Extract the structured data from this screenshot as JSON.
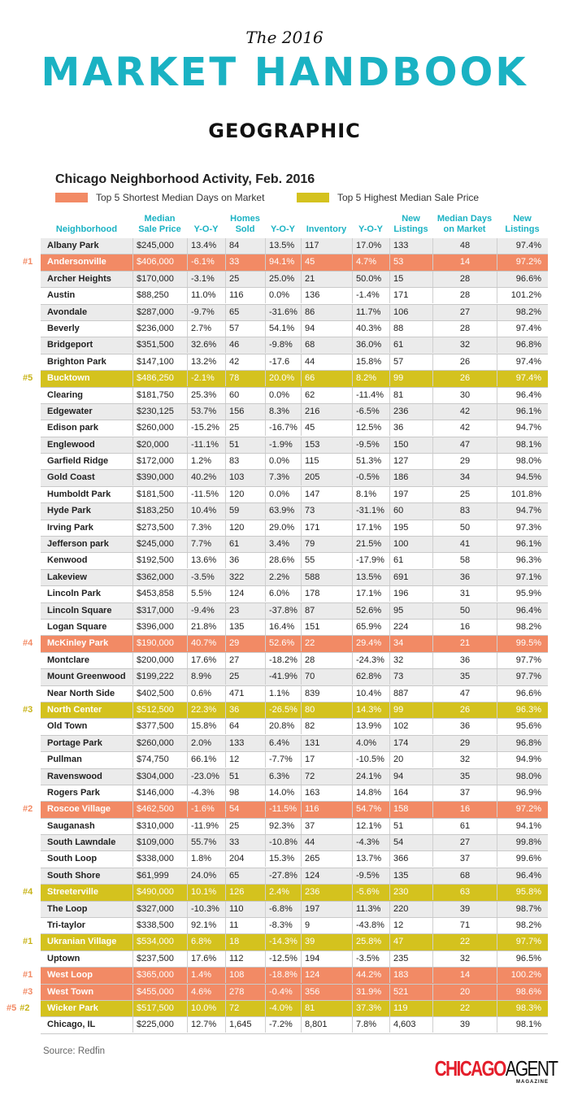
{
  "header": {
    "kicker": "The 2016",
    "title": "MARKET HANDBOOK",
    "section": "GEOGRAPHIC"
  },
  "table": {
    "title": "Chicago Neighborhood Activity, Feb. 2016",
    "legend": [
      {
        "label": "Top 5 Shortest Median Days on Market",
        "color": "#f28a65"
      },
      {
        "label": "Top 5 Highest Median Sale Price",
        "color": "#d4c21e"
      }
    ],
    "rank_colors": {
      "days": "#f28a65",
      "price": "#c8b41a"
    },
    "columns": [
      "Neighborhood",
      "Median\nSale Price",
      "Y-O-Y",
      "Homes\nSold",
      "Y-O-Y",
      "Inventory",
      "Y-O-Y",
      "New\nListings",
      "Median Days\non Market",
      "New\nListings"
    ],
    "rows": [
      {
        "cells": [
          "Albany Park",
          "$245,000",
          "13.4%",
          "84",
          "13.5%",
          "117",
          "17.0%",
          "133",
          "48",
          "97.4%"
        ]
      },
      {
        "cells": [
          "Andersonville",
          "$406,000",
          "-6.1%",
          "33",
          "94.1%",
          "45",
          "4.7%",
          "53",
          "14",
          "97.2%"
        ],
        "highlight": "days",
        "ranks": [
          {
            "text": "#1",
            "type": "days"
          }
        ]
      },
      {
        "cells": [
          "Archer Heights",
          "$170,000",
          "-3.1%",
          "25",
          "25.0%",
          "21",
          "50.0%",
          "15",
          "28",
          "96.6%"
        ]
      },
      {
        "cells": [
          "Austin",
          "$88,250",
          "11.0%",
          "116",
          "0.0%",
          "136",
          "-1.4%",
          "171",
          "28",
          "101.2%"
        ]
      },
      {
        "cells": [
          "Avondale",
          "$287,000",
          "-9.7%",
          "65",
          "-31.6%",
          "86",
          "11.7%",
          "106",
          "27",
          "98.2%"
        ]
      },
      {
        "cells": [
          "Beverly",
          "$236,000",
          "2.7%",
          "57",
          "54.1%",
          "94",
          "40.3%",
          "88",
          "28",
          "97.4%"
        ]
      },
      {
        "cells": [
          "Bridgeport",
          "$351,500",
          "32.6%",
          "46",
          "-9.8%",
          "68",
          "36.0%",
          "61",
          "32",
          "96.8%"
        ]
      },
      {
        "cells": [
          "Brighton Park",
          "$147,100",
          "13.2%",
          "42",
          "-17.6",
          "44",
          "15.8%",
          "57",
          "26",
          "97.4%"
        ]
      },
      {
        "cells": [
          "Bucktown",
          "$486,250",
          "-2.1%",
          "78",
          "20.0%",
          "66",
          "8.2%",
          "99",
          "26",
          "97.4%"
        ],
        "highlight": "price",
        "ranks": [
          {
            "text": "#5",
            "type": "price"
          }
        ]
      },
      {
        "cells": [
          "Clearing",
          "$181,750",
          "25.3%",
          "60",
          "0.0%",
          "62",
          "-11.4%",
          "81",
          "30",
          "96.4%"
        ]
      },
      {
        "cells": [
          "Edgewater",
          "$230,125",
          "53.7%",
          "156",
          "8.3%",
          "216",
          "-6.5%",
          "236",
          "42",
          "96.1%"
        ]
      },
      {
        "cells": [
          "Edison park",
          "$260,000",
          "-15.2%",
          "25",
          "-16.7%",
          "45",
          "12.5%",
          "36",
          "42",
          "94.7%"
        ]
      },
      {
        "cells": [
          "Englewood",
          "$20,000",
          "-11.1%",
          "51",
          "-1.9%",
          "153",
          "-9.5%",
          "150",
          "47",
          "98.1%"
        ]
      },
      {
        "cells": [
          "Garfield Ridge",
          "$172,000",
          "1.2%",
          "83",
          "0.0%",
          "115",
          "51.3%",
          "127",
          "29",
          "98.0%"
        ]
      },
      {
        "cells": [
          "Gold Coast",
          "$390,000",
          "40.2%",
          "103",
          "7.3%",
          "205",
          "-0.5%",
          "186",
          "34",
          "94.5%"
        ]
      },
      {
        "cells": [
          "Humboldt Park",
          "$181,500",
          "-11.5%",
          "120",
          "0.0%",
          "147",
          "8.1%",
          "197",
          "25",
          "101.8%"
        ]
      },
      {
        "cells": [
          "Hyde Park",
          "$183,250",
          "10.4%",
          "59",
          "63.9%",
          "73",
          "-31.1%",
          "60",
          "83",
          "94.7%"
        ]
      },
      {
        "cells": [
          "Irving Park",
          "$273,500",
          "7.3%",
          "120",
          "29.0%",
          "171",
          "17.1%",
          "195",
          "50",
          "97.3%"
        ]
      },
      {
        "cells": [
          "Jefferson park",
          "$245,000",
          "7.7%",
          "61",
          "3.4%",
          "79",
          "21.5%",
          "100",
          "41",
          "96.1%"
        ]
      },
      {
        "cells": [
          "Kenwood",
          "$192,500",
          "13.6%",
          "36",
          "28.6%",
          "55",
          "-17.9%",
          "61",
          "58",
          "96.3%"
        ]
      },
      {
        "cells": [
          "Lakeview",
          "$362,000",
          "-3.5%",
          "322",
          "2.2%",
          "588",
          "13.5%",
          "691",
          "36",
          "97.1%"
        ]
      },
      {
        "cells": [
          "Lincoln Park",
          "$453,858",
          "5.5%",
          "124",
          "6.0%",
          "178",
          "17.1%",
          "196",
          "31",
          "95.9%"
        ]
      },
      {
        "cells": [
          "Lincoln Square",
          "$317,000",
          "-9.4%",
          "23",
          "-37.8%",
          "87",
          "52.6%",
          "95",
          "50",
          "96.4%"
        ]
      },
      {
        "cells": [
          "Logan Square",
          "$396,000",
          "21.8%",
          "135",
          "16.4%",
          "151",
          "65.9%",
          "224",
          "16",
          "98.2%"
        ]
      },
      {
        "cells": [
          "McKinley Park",
          "$190,000",
          "40.7%",
          "29",
          "52.6%",
          "22",
          "29.4%",
          "34",
          "21",
          "99.5%"
        ],
        "highlight": "days",
        "ranks": [
          {
            "text": "#4",
            "type": "days"
          }
        ]
      },
      {
        "cells": [
          "Montclare",
          "$200,000",
          "17.6%",
          "27",
          "-18.2%",
          "28",
          "-24.3%",
          "32",
          "36",
          "97.7%"
        ]
      },
      {
        "cells": [
          "Mount Greenwood",
          "$199,222",
          "8.9%",
          "25",
          "-41.9%",
          "70",
          "62.8%",
          "73",
          "35",
          "97.7%"
        ]
      },
      {
        "cells": [
          "Near North Side",
          "$402,500",
          "0.6%",
          "471",
          "1.1%",
          "839",
          "10.4%",
          "887",
          "47",
          "96.6%"
        ]
      },
      {
        "cells": [
          "North Center",
          "$512,500",
          "22.3%",
          "36",
          "-26.5%",
          "80",
          "14.3%",
          "99",
          "26",
          "96.3%"
        ],
        "highlight": "price",
        "ranks": [
          {
            "text": "#3",
            "type": "price"
          }
        ]
      },
      {
        "cells": [
          "Old Town",
          "$377,500",
          "15.8%",
          "64",
          "20.8%",
          "82",
          "13.9%",
          "102",
          "36",
          "95.6%"
        ]
      },
      {
        "cells": [
          "Portage Park",
          "$260,000",
          "2.0%",
          "133",
          "6.4%",
          "131",
          "4.0%",
          "174",
          "29",
          "96.8%"
        ]
      },
      {
        "cells": [
          "Pullman",
          "$74,750",
          "66.1%",
          "12",
          "-7.7%",
          "17",
          "-10.5%",
          "20",
          "32",
          "94.9%"
        ]
      },
      {
        "cells": [
          "Ravenswood",
          "$304,000",
          "-23.0%",
          "51",
          "6.3%",
          "72",
          "24.1%",
          "94",
          "35",
          "98.0%"
        ]
      },
      {
        "cells": [
          "Rogers Park",
          "$146,000",
          "-4.3%",
          "98",
          "14.0%",
          "163",
          "14.8%",
          "164",
          "37",
          "96.9%"
        ]
      },
      {
        "cells": [
          "Roscoe Village",
          "$462,500",
          "-1.6%",
          "54",
          "-11.5%",
          "116",
          "54.7%",
          "158",
          "16",
          "97.2%"
        ],
        "highlight": "days",
        "ranks": [
          {
            "text": "#2",
            "type": "days"
          }
        ]
      },
      {
        "cells": [
          "Sauganash",
          "$310,000",
          "-11.9%",
          "25",
          "92.3%",
          "37",
          "12.1%",
          "51",
          "61",
          "94.1%"
        ]
      },
      {
        "cells": [
          "South Lawndale",
          "$109,000",
          "55.7%",
          "33",
          "-10.8%",
          "44",
          "-4.3%",
          "54",
          "27",
          "99.8%"
        ]
      },
      {
        "cells": [
          "South Loop",
          "$338,000",
          "1.8%",
          "204",
          "15.3%",
          "265",
          "13.7%",
          "366",
          "37",
          "99.6%"
        ]
      },
      {
        "cells": [
          "South Shore",
          "$61,999",
          "24.0%",
          "65",
          "-27.8%",
          "124",
          "-9.5%",
          "135",
          "68",
          "96.4%"
        ]
      },
      {
        "cells": [
          "Streeterville",
          "$490,000",
          "10.1%",
          "126",
          "2.4%",
          "236",
          "-5.6%",
          "230",
          "63",
          "95.8%"
        ],
        "highlight": "price",
        "ranks": [
          {
            "text": "#4",
            "type": "price"
          }
        ]
      },
      {
        "cells": [
          "The Loop",
          "$327,000",
          "-10.3%",
          "110",
          "-6.8%",
          "197",
          "11.3%",
          "220",
          "39",
          "98.7%"
        ]
      },
      {
        "cells": [
          "Tri-taylor",
          "$338,500",
          "92.1%",
          "11",
          "-8.3%",
          "9",
          "-43.8%",
          "12",
          "71",
          "98.2%"
        ]
      },
      {
        "cells": [
          "Ukranian Village",
          "$534,000",
          "6.8%",
          "18",
          "-14.3%",
          "39",
          "25.8%",
          "47",
          "22",
          "97.7%"
        ],
        "highlight": "price",
        "ranks": [
          {
            "text": "#1",
            "type": "price"
          }
        ]
      },
      {
        "cells": [
          "Uptown",
          "$237,500",
          "17.6%",
          "112",
          "-12.5%",
          "194",
          "-3.5%",
          "235",
          "32",
          "96.5%"
        ]
      },
      {
        "cells": [
          "West Loop",
          "$365,000",
          "1.4%",
          "108",
          "-18.8%",
          "124",
          "44.2%",
          "183",
          "14",
          "100.2%"
        ],
        "highlight": "days",
        "ranks": [
          {
            "text": "#1",
            "type": "days"
          }
        ]
      },
      {
        "cells": [
          "West Town",
          "$455,000",
          "4.6%",
          "278",
          "-0.4%",
          "356",
          "31.9%",
          "521",
          "20",
          "98.6%"
        ],
        "highlight": "days",
        "ranks": [
          {
            "text": "#3",
            "type": "days"
          }
        ]
      },
      {
        "cells": [
          "Wicker Park",
          "$517,500",
          "10.0%",
          "72",
          "-4.0%",
          "81",
          "37.3%",
          "119",
          "22",
          "98.3%"
        ],
        "highlight": "price",
        "ranks": [
          {
            "text": "#5",
            "type": "days"
          },
          {
            "text": "#2",
            "type": "price"
          }
        ]
      },
      {
        "cells": [
          "Chicago, IL",
          "$225,000",
          "12.7%",
          "1,645",
          "-7.2%",
          "8,801",
          "7.8%",
          "4,603",
          "39",
          "98.1%"
        ]
      }
    ]
  },
  "footer": {
    "source": "Source: Redfin",
    "logo_primary": "CHICAGO",
    "logo_secondary": "AGENT",
    "logo_sub": "MAGAZINE"
  }
}
